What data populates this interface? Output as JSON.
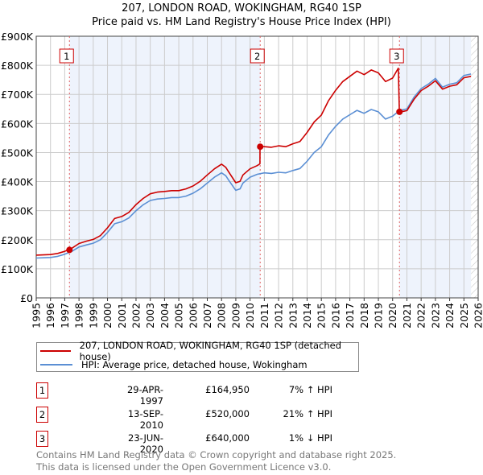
{
  "chart_data": {
    "type": "line",
    "title": "207, LONDON ROAD, WOKINGHAM, RG40 1SP",
    "subtitle": "Price paid vs. HM Land Registry's House Price Index (HPI)",
    "xlabel": "",
    "ylabel": "",
    "xlim": [
      1995,
      2026
    ],
    "ylim": [
      0,
      900000
    ],
    "x_ticks": [
      "1995",
      "1996",
      "1997",
      "1998",
      "1999",
      "2000",
      "2001",
      "2002",
      "2003",
      "2004",
      "2005",
      "2006",
      "2007",
      "2008",
      "2009",
      "2010",
      "2011",
      "2012",
      "2013",
      "2014",
      "2015",
      "2016",
      "2017",
      "2018",
      "2019",
      "2020",
      "2021",
      "2022",
      "2023",
      "2024",
      "2025",
      "2026"
    ],
    "y_ticks": [
      {
        "v": 0,
        "label": "£0"
      },
      {
        "v": 100000,
        "label": "£100K"
      },
      {
        "v": 200000,
        "label": "£200K"
      },
      {
        "v": 300000,
        "label": "£300K"
      },
      {
        "v": 400000,
        "label": "£400K"
      },
      {
        "v": 500000,
        "label": "£500K"
      },
      {
        "v": 600000,
        "label": "£600K"
      },
      {
        "v": 700000,
        "label": "£700K"
      },
      {
        "v": 800000,
        "label": "£800K"
      },
      {
        "v": 900000,
        "label": "£900K"
      }
    ],
    "grid": true,
    "series": [
      {
        "name": "207, LONDON ROAD, WOKINGHAM, RG40 1SP (detached house)",
        "color": "#cc0000",
        "x": [
          1995,
          1995.5,
          1996,
          1996.5,
          1997,
          1997.5,
          1998,
          1998.5,
          1999,
          1999.5,
          2000,
          2000.5,
          2001,
          2001.5,
          2002,
          2002.5,
          2003,
          2003.5,
          2004,
          2004.5,
          2005,
          2005.5,
          2006,
          2006.5,
          2007,
          2007.5,
          2008,
          2008.3,
          2008.5,
          2009,
          2009.3,
          2009.5,
          2010,
          2010.5,
          2010.69,
          2010.7,
          2011,
          2011.5,
          2012,
          2012.5,
          2013,
          2013.5,
          2014,
          2014.5,
          2015,
          2015.5,
          2016,
          2016.5,
          2017,
          2017.5,
          2018,
          2018.5,
          2019,
          2019.5,
          2020,
          2020.4,
          2020.47,
          2020.5,
          2021,
          2021.5,
          2022,
          2022.5,
          2023,
          2023.5,
          2024,
          2024.5,
          2025,
          2025.5
        ],
        "y": [
          147,
          148,
          149,
          153,
          160,
          171,
          187,
          195,
          201,
          214,
          241,
          273,
          280,
          294,
          321,
          342,
          358,
          364,
          366,
          369,
          369,
          375,
          385,
          401,
          423,
          444,
          460,
          449,
          433,
          396,
          401,
          423,
          444,
          455,
          461,
          520,
          520,
          518,
          523,
          520,
          530,
          538,
          569,
          605,
          629,
          678,
          714,
          744,
          762,
          780,
          768,
          784,
          774,
          744,
          756,
          790,
          640,
          639,
          644,
          683,
          713,
          728,
          747,
          718,
          728,
          733,
          757,
          762
        ],
        "y_unit": "£K"
      },
      {
        "name": "HPI: Average price, detached house, Wokingham",
        "color": "#5b8fd4",
        "x": [
          1995,
          1995.5,
          1996,
          1996.5,
          1997,
          1997.5,
          1998,
          1998.5,
          1999,
          1999.5,
          2000,
          2000.5,
          2001,
          2001.5,
          2002,
          2002.5,
          2003,
          2003.5,
          2004,
          2004.5,
          2005,
          2005.5,
          2006,
          2006.5,
          2007,
          2007.5,
          2008,
          2008.3,
          2008.5,
          2009,
          2009.3,
          2009.5,
          2010,
          2010.5,
          2011,
          2011.5,
          2012,
          2012.5,
          2013,
          2013.5,
          2014,
          2014.5,
          2015,
          2015.5,
          2016,
          2016.5,
          2017,
          2017.5,
          2018,
          2018.5,
          2019,
          2019.5,
          2020,
          2020.5,
          2021,
          2021.5,
          2022,
          2022.5,
          2023,
          2023.5,
          2024,
          2024.5,
          2025,
          2025.5
        ],
        "y": [
          137,
          138,
          139,
          143,
          150,
          160,
          175,
          182,
          188,
          200,
          225,
          255,
          262,
          275,
          300,
          320,
          335,
          340,
          342,
          345,
          345,
          350,
          360,
          375,
          395,
          415,
          430,
          420,
          405,
          370,
          375,
          395,
          415,
          425,
          430,
          428,
          432,
          430,
          438,
          445,
          470,
          500,
          520,
          560,
          590,
          615,
          630,
          645,
          635,
          648,
          640,
          615,
          625,
          645,
          650,
          690,
          720,
          735,
          755,
          725,
          735,
          740,
          765,
          770
        ],
        "y_unit": "£K"
      }
    ],
    "sales": [
      {
        "id": "1",
        "x": 1997.33,
        "price": 164950
      },
      {
        "id": "2",
        "x": 2010.71,
        "price": 520000
      },
      {
        "id": "3",
        "x": 2020.48,
        "price": 640000
      }
    ],
    "data_end": 2025.5,
    "legend_position": "below"
  },
  "legend": [
    {
      "label": "207, LONDON ROAD, WOKINGHAM, RG40 1SP (detached house)",
      "color": "#cc0000"
    },
    {
      "label": "HPI: Average price, detached house, Wokingham",
      "color": "#5b8fd4"
    }
  ],
  "transactions": [
    {
      "num": "1",
      "date": "29-APR-1997",
      "price": "£164,950",
      "hpi": "7% ↑ HPI"
    },
    {
      "num": "2",
      "date": "13-SEP-2010",
      "price": "£520,000",
      "hpi": "21% ↑ HPI"
    },
    {
      "num": "3",
      "date": "23-JUN-2020",
      "price": "£640,000",
      "hpi": "1% ↓ HPI"
    }
  ],
  "footer": {
    "line1": "Contains HM Land Registry data © Crown copyright and database right 2025.",
    "line2": "This data is licensed under the Open Government Licence v3.0."
  }
}
